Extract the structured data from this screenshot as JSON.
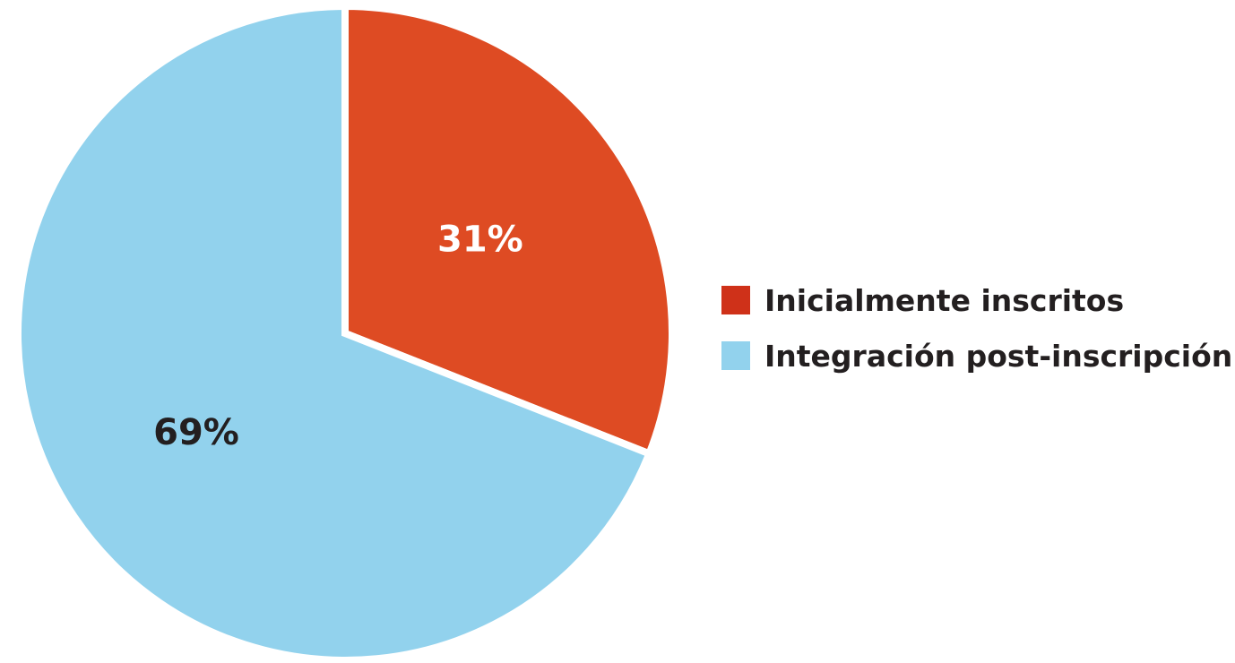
{
  "chart_data": {
    "type": "pie",
    "title": "",
    "slices": [
      {
        "label": "Inicialmente inscritos",
        "value": 31,
        "value_label": "31%",
        "color": "#de4b23",
        "legend_color": "#cf3119",
        "label_color": "#ffffff"
      },
      {
        "label": "Integración post-inscripción",
        "value": 69,
        "value_label": "69%",
        "color": "#92d2ed",
        "legend_color": "#92d2ed",
        "label_color": "#231f20"
      }
    ],
    "start_angle": "12 o'clock",
    "direction": "clockwise",
    "legend_position": "right"
  }
}
